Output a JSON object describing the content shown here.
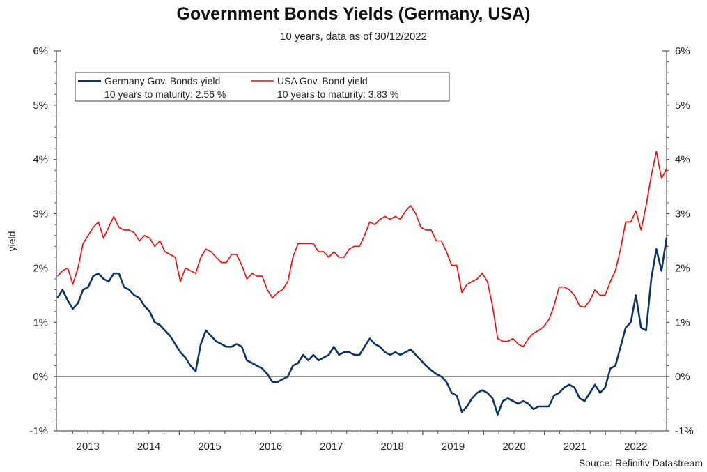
{
  "chart_data": {
    "type": "line",
    "title": "Government Bonds Yields (Germany, USA)",
    "subtitle": "10 years, data as of 30/12/2022",
    "source": "Source: Refinitiv Datastream",
    "xlabel": "",
    "ylabel": "yield",
    "ylim": [
      -1,
      6
    ],
    "y_ticks": [
      "-1%",
      "0%",
      "1%",
      "2%",
      "3%",
      "4%",
      "5%",
      "6%"
    ],
    "y_tick_values": [
      -1,
      0,
      1,
      2,
      3,
      4,
      5,
      6
    ],
    "x_ticks": [
      "2013",
      "2014",
      "2015",
      "2016",
      "2017",
      "2018",
      "2019",
      "2020",
      "2021",
      "2022"
    ],
    "x_range": [
      "2013-01",
      "2022-12"
    ],
    "x_frequency": "monthly",
    "legend_position": "top-left",
    "grid": false,
    "series": [
      {
        "name": "Germany Gov. Bonds yield",
        "legend_line2": "10 years to maturity: 2.56 %",
        "color": "#0b3467",
        "values": [
          1.45,
          1.6,
          1.4,
          1.25,
          1.35,
          1.6,
          1.65,
          1.85,
          1.9,
          1.8,
          1.75,
          1.9,
          1.9,
          1.65,
          1.6,
          1.5,
          1.45,
          1.3,
          1.2,
          1.0,
          0.95,
          0.85,
          0.75,
          0.6,
          0.45,
          0.35,
          0.2,
          0.1,
          0.6,
          0.85,
          0.75,
          0.65,
          0.6,
          0.55,
          0.55,
          0.6,
          0.55,
          0.3,
          0.25,
          0.2,
          0.15,
          0.05,
          -0.1,
          -0.1,
          -0.05,
          0.0,
          0.2,
          0.25,
          0.4,
          0.3,
          0.4,
          0.3,
          0.35,
          0.4,
          0.55,
          0.4,
          0.45,
          0.45,
          0.4,
          0.4,
          0.55,
          0.7,
          0.6,
          0.55,
          0.45,
          0.4,
          0.45,
          0.4,
          0.45,
          0.5,
          0.4,
          0.3,
          0.2,
          0.12,
          0.05,
          0.0,
          -0.1,
          -0.3,
          -0.35,
          -0.65,
          -0.55,
          -0.4,
          -0.3,
          -0.25,
          -0.3,
          -0.4,
          -0.7,
          -0.45,
          -0.4,
          -0.45,
          -0.5,
          -0.45,
          -0.5,
          -0.6,
          -0.55,
          -0.55,
          -0.55,
          -0.35,
          -0.3,
          -0.2,
          -0.15,
          -0.2,
          -0.4,
          -0.45,
          -0.3,
          -0.15,
          -0.3,
          -0.2,
          0.15,
          0.2,
          0.55,
          0.9,
          1.0,
          1.5,
          0.9,
          0.85,
          1.8,
          2.35,
          1.95,
          2.56
        ]
      },
      {
        "name": "USA Gov. Bond yield",
        "legend_line2": "10 years to maturity: 3.83 %",
        "color": "#ff0000",
        "values": [
          1.85,
          1.95,
          2.0,
          1.7,
          2.0,
          2.45,
          2.6,
          2.75,
          2.85,
          2.55,
          2.75,
          2.95,
          2.75,
          2.7,
          2.7,
          2.65,
          2.5,
          2.6,
          2.55,
          2.4,
          2.5,
          2.3,
          2.25,
          2.2,
          1.75,
          2.0,
          1.95,
          1.9,
          2.2,
          2.35,
          2.3,
          2.2,
          2.1,
          2.1,
          2.25,
          2.25,
          2.05,
          1.8,
          1.9,
          1.85,
          1.85,
          1.6,
          1.45,
          1.55,
          1.6,
          1.75,
          2.2,
          2.45,
          2.45,
          2.45,
          2.45,
          2.3,
          2.3,
          2.2,
          2.3,
          2.2,
          2.2,
          2.35,
          2.4,
          2.4,
          2.6,
          2.85,
          2.8,
          2.9,
          2.95,
          2.9,
          2.95,
          2.9,
          3.05,
          3.15,
          3.0,
          2.75,
          2.7,
          2.7,
          2.5,
          2.5,
          2.3,
          2.05,
          2.05,
          1.55,
          1.7,
          1.75,
          1.8,
          1.9,
          1.75,
          1.3,
          0.7,
          0.65,
          0.65,
          0.7,
          0.6,
          0.55,
          0.7,
          0.8,
          0.85,
          0.92,
          1.05,
          1.3,
          1.65,
          1.65,
          1.6,
          1.5,
          1.3,
          1.28,
          1.4,
          1.6,
          1.5,
          1.5,
          1.75,
          1.95,
          2.35,
          2.85,
          2.85,
          3.05,
          2.7,
          3.15,
          3.7,
          4.15,
          3.65,
          3.83
        ]
      }
    ]
  }
}
